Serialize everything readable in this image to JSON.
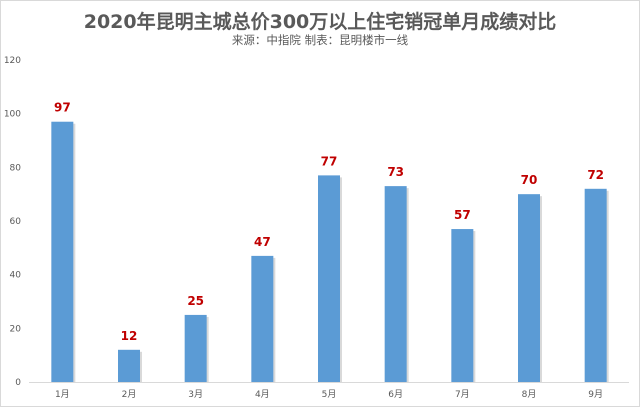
{
  "chart_data": {
    "type": "bar",
    "title": "2020年昆明主城总价300万以上住宅销冠单月成绩对比",
    "subtitle": "来源：中指院  制表：昆明楼市一线",
    "categories": [
      "1月",
      "2月",
      "3月",
      "4月",
      "5月",
      "6月",
      "7月",
      "8月",
      "9月"
    ],
    "values": [
      97,
      12,
      25,
      47,
      77,
      73,
      57,
      70,
      72
    ],
    "xlabel": "",
    "ylabel": "",
    "ylim": [
      0,
      120
    ],
    "yticks": [
      0,
      20,
      40,
      60,
      80,
      100,
      120
    ],
    "grid": false,
    "legend": "none",
    "colors": {
      "bar": "#5b9bd5",
      "data_label": "#c00000",
      "text": "#595959"
    }
  }
}
